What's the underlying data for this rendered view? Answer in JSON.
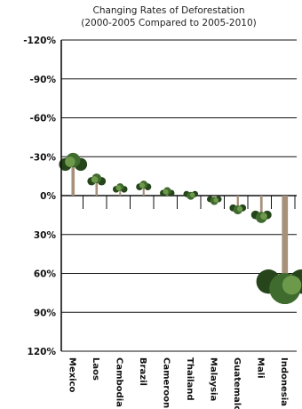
{
  "chart_data": {
    "type": "bar",
    "title": "Changing Rates of Deforestation",
    "subtitle": "(2000-2005 Compared to 2005-2010)",
    "xlabel": "",
    "ylabel": "",
    "categories": [
      "Mexico",
      "Laos",
      "Cambodia",
      "Brazil",
      "Cameroon",
      "Thailand",
      "Malaysia",
      "Guatemalc",
      "Mali",
      "Indonesia"
    ],
    "values": [
      -30,
      -15,
      -8,
      -10,
      -5,
      1,
      5,
      12,
      18,
      75
    ],
    "ylim": [
      -120,
      120
    ],
    "yticks": [
      -120,
      -90,
      -60,
      -30,
      0,
      30,
      60,
      90,
      120
    ],
    "ytick_labels": [
      "-120%",
      "-90%",
      "-60%",
      "-30%",
      "0%",
      "30%",
      "60%",
      "90%",
      "120%"
    ],
    "grid": true,
    "legend": "none",
    "colors": {
      "trunk": "#a8917a",
      "trunk_dark": "#6e5a47",
      "foliage": "#3f6b2e",
      "foliage_light": "#6d9a4a",
      "foliage_dark": "#26451b",
      "axis": "#111111"
    }
  }
}
